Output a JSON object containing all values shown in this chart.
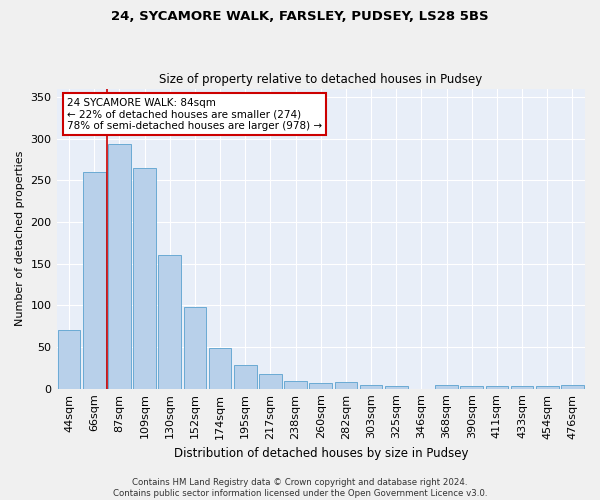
{
  "title1": "24, SYCAMORE WALK, FARSLEY, PUDSEY, LS28 5BS",
  "title2": "Size of property relative to detached houses in Pudsey",
  "xlabel": "Distribution of detached houses by size in Pudsey",
  "ylabel": "Number of detached properties",
  "categories": [
    "44sqm",
    "66sqm",
    "87sqm",
    "109sqm",
    "130sqm",
    "152sqm",
    "174sqm",
    "195sqm",
    "217sqm",
    "238sqm",
    "260sqm",
    "282sqm",
    "303sqm",
    "325sqm",
    "346sqm",
    "368sqm",
    "390sqm",
    "411sqm",
    "433sqm",
    "454sqm",
    "476sqm"
  ],
  "values": [
    70,
    260,
    293,
    265,
    160,
    98,
    49,
    28,
    18,
    9,
    7,
    8,
    5,
    3,
    0,
    4,
    3,
    3,
    3,
    3,
    4
  ],
  "bar_color": "#b8d0ea",
  "bar_edge_color": "#6aaad4",
  "plot_bg_color": "#e8eef8",
  "fig_bg_color": "#f0f0f0",
  "grid_color": "#ffffff",
  "red_line_color": "#cc0000",
  "red_line_x": 1.5,
  "annotation_line1": "24 SYCAMORE WALK: 84sqm",
  "annotation_line2": "← 22% of detached houses are smaller (274)",
  "annotation_line3": "78% of semi-detached houses are larger (978) →",
  "annotation_box_color": "#ffffff",
  "annotation_box_edge": "#cc0000",
  "footer1": "Contains HM Land Registry data © Crown copyright and database right 2024.",
  "footer2": "Contains public sector information licensed under the Open Government Licence v3.0.",
  "ylim": [
    0,
    360
  ],
  "yticks": [
    0,
    50,
    100,
    150,
    200,
    250,
    300,
    350
  ]
}
